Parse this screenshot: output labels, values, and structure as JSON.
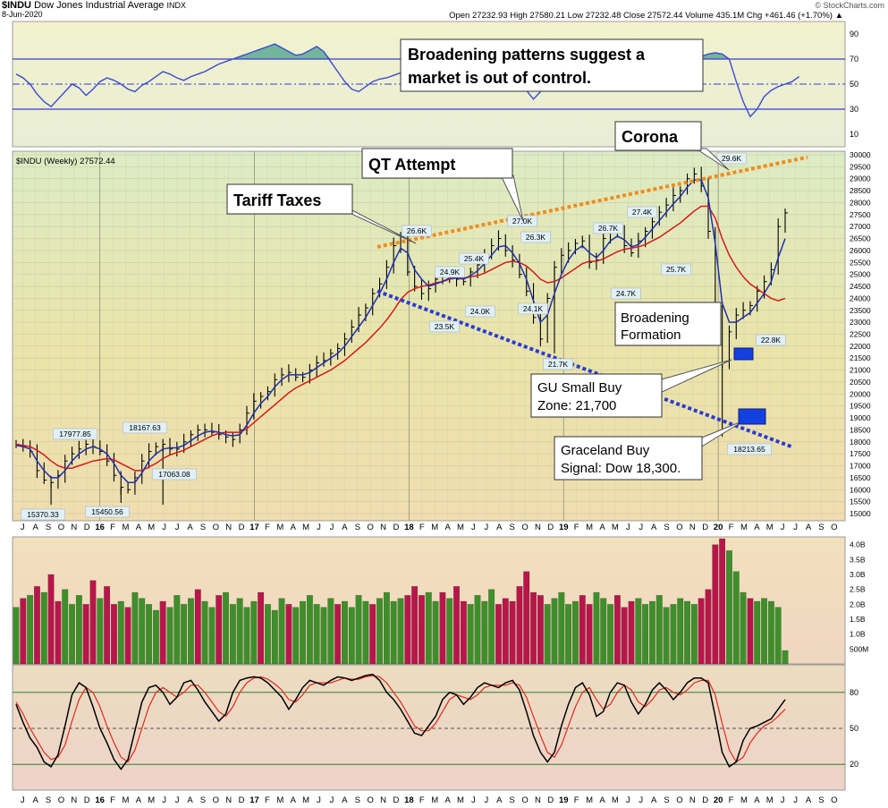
{
  "header": {
    "symbol": "$INDU",
    "name": "Dow Jones Industrial Average",
    "exchange": "INDX",
    "date": "8-Jun-2020",
    "source": "© StockCharts.com",
    "ohlc_line": "Open 27232.93  High 27580.21  Low 27232.48  Close 27572.44  Volume 435.1M  Chg +461.46 (+1.70%) ▲"
  },
  "colors": {
    "price": "#000000",
    "ma_short": "#1f2fb0",
    "ma_long": "#d41a1a",
    "upper_trend": "#f08c1e",
    "lower_trend": "#2b3bd6",
    "vol_up": "#3e8f2a",
    "vol_down": "#b8164a",
    "rsi_fill": "#4aa08a",
    "buy_box": "#1540e0"
  },
  "chart_data": [
    {
      "type": "line",
      "panel": "rsi",
      "ylim": [
        0,
        100
      ],
      "ticks": [
        "90",
        "70",
        "50",
        "30",
        "10"
      ],
      "levels": [
        70,
        50,
        30
      ],
      "values": [
        58,
        55,
        50,
        42,
        36,
        32,
        38,
        44,
        50,
        47,
        41,
        46,
        52,
        55,
        53,
        50,
        46,
        44,
        49,
        52,
        56,
        60,
        58,
        55,
        53,
        56,
        58,
        60,
        63,
        66,
        68,
        70,
        72,
        74,
        76,
        78,
        80,
        82,
        79,
        76,
        73,
        74,
        77,
        80,
        76,
        68,
        60,
        52,
        46,
        44,
        48,
        52,
        54,
        55,
        57,
        59,
        61,
        63,
        62,
        60,
        58,
        60,
        63,
        61,
        58,
        55,
        57,
        60,
        62,
        65,
        64,
        61,
        56,
        45,
        38,
        44,
        52,
        56,
        58,
        60,
        62,
        60,
        58,
        56,
        58,
        60,
        62,
        63,
        64,
        63,
        62,
        60,
        58,
        60,
        63,
        66,
        68,
        70,
        72,
        74,
        75,
        74,
        70,
        52,
        36,
        24,
        30,
        40,
        45,
        48,
        50,
        52,
        56
      ]
    },
    {
      "type": "line",
      "panel": "price",
      "series_label": "$INDU (Weekly) 27572.44",
      "ylim": [
        15000,
        30000
      ],
      "y_ticks": [
        "30000",
        "29500",
        "29000",
        "28500",
        "28000",
        "27500",
        "27000",
        "26500",
        "26000",
        "25500",
        "25000",
        "24500",
        "24000",
        "23500",
        "23000",
        "22500",
        "22000",
        "21500",
        "21000",
        "20500",
        "20000",
        "19500",
        "19000",
        "18500",
        "18000",
        "17500",
        "17000",
        "16500",
        "16000",
        "15500",
        "15000"
      ],
      "x_labels": [
        "J",
        "A",
        "S",
        "O",
        "N",
        "D",
        "16",
        "F",
        "M",
        "A",
        "M",
        "J",
        "J",
        "A",
        "S",
        "O",
        "N",
        "D",
        "17",
        "F",
        "M",
        "A",
        "M",
        "J",
        "J",
        "A",
        "S",
        "O",
        "N",
        "D",
        "18",
        "F",
        "M",
        "A",
        "M",
        "J",
        "J",
        "A",
        "S",
        "O",
        "N",
        "D",
        "19",
        "F",
        "M",
        "A",
        "M",
        "J",
        "J",
        "A",
        "S",
        "O",
        "N",
        "D",
        "20",
        "F",
        "M",
        "A",
        "M",
        "J",
        "J",
        "A",
        "S",
        "O"
      ],
      "close": [
        17900,
        17800,
        17600,
        16800,
        16400,
        16300,
        16600,
        17200,
        17500,
        17700,
        17900,
        17800,
        17600,
        17200,
        16600,
        16100,
        16000,
        16500,
        17200,
        17600,
        17800,
        17900,
        17700,
        17700,
        18000,
        18300,
        18500,
        18500,
        18400,
        18300,
        18200,
        18100,
        18500,
        19200,
        19700,
        19900,
        20100,
        20600,
        20800,
        20900,
        20700,
        20700,
        21000,
        21300,
        21400,
        21700,
        21900,
        22300,
        22800,
        23300,
        23600,
        24200,
        24600,
        25300,
        26200,
        26600,
        25100,
        24500,
        24200,
        24400,
        24800,
        24900,
        25000,
        24800,
        24700,
        25100,
        25400,
        25800,
        26200,
        26500,
        26000,
        25600,
        25000,
        24300,
        23200,
        22300,
        24000,
        25300,
        25800,
        26000,
        26300,
        26400,
        25500,
        25600,
        26500,
        26900,
        26800,
        26200,
        25900,
        26400,
        26800,
        27200,
        27600,
        27900,
        28300,
        28500,
        29000,
        29200,
        28700,
        26800,
        23500,
        21300,
        22600,
        23300,
        23500,
        23700,
        24300,
        24700,
        25200,
        27000,
        27572
      ],
      "ma_short": [
        17850,
        17800,
        17700,
        17200,
        16800,
        16500,
        16500,
        16800,
        17200,
        17500,
        17700,
        17800,
        17700,
        17500,
        17100,
        16600,
        16300,
        16300,
        16700,
        17200,
        17500,
        17700,
        17750,
        17750,
        17850,
        18050,
        18250,
        18400,
        18450,
        18400,
        18300,
        18250,
        18300,
        18700,
        19200,
        19600,
        19900,
        20300,
        20600,
        20800,
        20800,
        20800,
        20900,
        21100,
        21300,
        21500,
        21700,
        22000,
        22400,
        22800,
        23200,
        23700,
        24200,
        24800,
        25500,
        26100,
        25900,
        25200,
        24800,
        24500,
        24600,
        24700,
        24850,
        24850,
        24800,
        24950,
        25150,
        25450,
        25800,
        26150,
        26200,
        25900,
        25450,
        24800,
        23900,
        23000,
        23300,
        24200,
        25000,
        25600,
        26000,
        26200,
        25900,
        25700,
        26000,
        26400,
        26600,
        26450,
        26150,
        26250,
        26550,
        26900,
        27250,
        27600,
        27950,
        28250,
        28650,
        28950,
        28950,
        28200,
        26300,
        23800,
        23000,
        23000,
        23200,
        23400,
        23800,
        24200,
        24700,
        25700,
        26500
      ],
      "ma_long": [
        17900,
        17850,
        17800,
        17650,
        17450,
        17200,
        17000,
        16900,
        16900,
        17000,
        17100,
        17200,
        17250,
        17300,
        17250,
        17100,
        16950,
        16800,
        16800,
        16950,
        17100,
        17300,
        17450,
        17550,
        17650,
        17800,
        17950,
        18100,
        18250,
        18350,
        18400,
        18400,
        18400,
        18550,
        18800,
        19050,
        19300,
        19550,
        19800,
        20050,
        20250,
        20400,
        20550,
        20700,
        20850,
        21000,
        21200,
        21400,
        21650,
        21900,
        22150,
        22450,
        22750,
        23100,
        23500,
        23950,
        24250,
        24400,
        24500,
        24550,
        24650,
        24700,
        24800,
        24850,
        24850,
        24900,
        24950,
        25050,
        25200,
        25350,
        25500,
        25550,
        25500,
        25350,
        25100,
        24800,
        24650,
        24700,
        24850,
        25050,
        25250,
        25450,
        25550,
        25550,
        25650,
        25800,
        25950,
        26050,
        26100,
        26150,
        26250,
        26400,
        26550,
        26750,
        26950,
        27150,
        27400,
        27650,
        27850,
        27850,
        27350,
        26500,
        25800,
        25300,
        24900,
        24600,
        24400,
        24200,
        24000,
        23900,
        24000
      ],
      "annotations": [
        {
          "text": "26.6K"
        },
        {
          "text": "26.3K"
        },
        {
          "text": "27.0K"
        },
        {
          "text": "26.7K"
        },
        {
          "text": "27.4K"
        },
        {
          "text": "29.6K"
        },
        {
          "text": "24.9K"
        },
        {
          "text": "25.4K"
        },
        {
          "text": "24.0K"
        },
        {
          "text": "23.5K"
        },
        {
          "text": "24.1K"
        },
        {
          "text": "24.7K"
        },
        {
          "text": "25.7K"
        },
        {
          "text": "21.7K"
        },
        {
          "text": "22.8K"
        },
        {
          "text": "18213.65"
        },
        {
          "text": "17977.85"
        },
        {
          "text": "18167.63"
        },
        {
          "text": "17063.08"
        },
        {
          "text": "15370.33"
        },
        {
          "text": "15450.56"
        }
      ]
    },
    {
      "type": "bar",
      "panel": "volume",
      "ylim": [
        0,
        4.2
      ],
      "ticks": [
        "4.0B",
        "3.5B",
        "3.0B",
        "2.5B",
        "2.0B",
        "1.5B",
        "1.0B",
        "500M"
      ],
      "values": [
        1.9,
        2.2,
        2.3,
        2.6,
        2.4,
        3.0,
        2.1,
        2.5,
        2.0,
        2.3,
        2.0,
        2.8,
        2.2,
        2.6,
        2.0,
        2.1,
        1.9,
        2.4,
        2.2,
        2.0,
        1.8,
        2.1,
        1.9,
        2.3,
        2.0,
        2.2,
        2.5,
        2.1,
        1.9,
        2.3,
        2.4,
        2.0,
        2.2,
        1.9,
        2.1,
        2.4,
        2.0,
        1.8,
        2.2,
        2.0,
        1.9,
        2.1,
        2.3,
        2.0,
        1.9,
        2.2,
        2.0,
        2.1,
        1.9,
        2.3,
        2.1,
        2.0,
        2.2,
        2.4,
        2.1,
        2.2,
        2.3,
        2.6,
        2.3,
        2.4,
        2.1,
        2.4,
        2.2,
        2.6,
        2.1,
        2.0,
        2.3,
        2.1,
        2.5,
        2.0,
        2.2,
        2.1,
        2.6,
        3.1,
        2.4,
        2.3,
        2.0,
        2.2,
        2.4,
        2.0,
        2.1,
        2.3,
        2.0,
        2.4,
        2.2,
        2.0,
        2.3,
        1.9,
        2.1,
        2.2,
        2.0,
        2.1,
        2.3,
        1.9,
        2.0,
        2.2,
        2.1,
        2.0,
        2.2,
        2.5,
        4.0,
        4.2,
        3.8,
        3.1,
        2.4,
        2.2,
        2.1,
        2.2,
        2.1,
        1.9,
        0.45
      ],
      "up": [
        1,
        0,
        1,
        0,
        1,
        0,
        0,
        1,
        1,
        1,
        0,
        0,
        1,
        0,
        0,
        1,
        0,
        1,
        1,
        1,
        1,
        0,
        1,
        1,
        1,
        1,
        0,
        1,
        1,
        0,
        1,
        1,
        1,
        1,
        1,
        0,
        1,
        1,
        1,
        0,
        1,
        1,
        1,
        1,
        1,
        1,
        0,
        1,
        1,
        1,
        1,
        0,
        1,
        1,
        1,
        1,
        0,
        0,
        0,
        1,
        1,
        0,
        1,
        0,
        0,
        1,
        1,
        1,
        1,
        0,
        0,
        0,
        0,
        0,
        0,
        0,
        1,
        1,
        1,
        1,
        1,
        0,
        0,
        1,
        1,
        1,
        0,
        0,
        0,
        1,
        1,
        1,
        1,
        1,
        1,
        1,
        1,
        1,
        0,
        0,
        0,
        0,
        1,
        1,
        1,
        0,
        1,
        1,
        1,
        1,
        1
      ]
    },
    {
      "type": "line",
      "panel": "stochastic",
      "ylim": [
        0,
        100
      ],
      "ticks": [
        "80",
        "50",
        "20"
      ],
      "levels": [
        80,
        50,
        20
      ],
      "k": [
        70,
        55,
        42,
        34,
        22,
        18,
        28,
        52,
        78,
        88,
        84,
        68,
        50,
        38,
        24,
        16,
        24,
        48,
        72,
        84,
        86,
        80,
        70,
        76,
        88,
        90,
        82,
        72,
        64,
        56,
        62,
        80,
        90,
        92,
        93,
        92,
        88,
        82,
        76,
        66,
        74,
        84,
        90,
        88,
        86,
        90,
        93,
        92,
        90,
        92,
        94,
        95,
        90,
        80,
        74,
        66,
        56,
        46,
        44,
        52,
        60,
        74,
        80,
        78,
        70,
        76,
        84,
        88,
        86,
        84,
        88,
        90,
        82,
        64,
        44,
        30,
        22,
        30,
        52,
        70,
        84,
        88,
        78,
        60,
        64,
        80,
        88,
        86,
        72,
        62,
        70,
        82,
        88,
        82,
        74,
        80,
        88,
        92,
        92,
        88,
        60,
        30,
        18,
        22,
        40,
        50,
        52,
        55,
        58,
        66,
        74
      ],
      "d": [
        72,
        62,
        50,
        40,
        30,
        24,
        26,
        36,
        56,
        74,
        84,
        80,
        68,
        52,
        38,
        26,
        22,
        32,
        50,
        68,
        80,
        84,
        80,
        76,
        80,
        86,
        86,
        80,
        72,
        64,
        60,
        68,
        80,
        88,
        92,
        93,
        91,
        87,
        82,
        74,
        72,
        78,
        86,
        88,
        88,
        88,
        90,
        92,
        91,
        91,
        93,
        94,
        93,
        88,
        80,
        72,
        62,
        52,
        48,
        48,
        54,
        64,
        74,
        78,
        76,
        74,
        78,
        84,
        86,
        86,
        86,
        88,
        86,
        76,
        60,
        44,
        30,
        26,
        36,
        52,
        68,
        80,
        84,
        74,
        66,
        70,
        80,
        86,
        82,
        72,
        68,
        74,
        82,
        84,
        80,
        78,
        82,
        88,
        90,
        90,
        78,
        54,
        32,
        22,
        26,
        38,
        46,
        52,
        55,
        60,
        66
      ]
    }
  ],
  "callouts": {
    "broadening_top": "Broadening patterns suggest a market is out of control.",
    "tariff": "Tariff Taxes",
    "qt": "QT Attempt",
    "corona": "Corona",
    "formation": "Broadening Formation",
    "gu_buy": "GU Small Buy Zone: 21,700",
    "graceland": "Graceland Buy Signal: Dow 18,300."
  }
}
